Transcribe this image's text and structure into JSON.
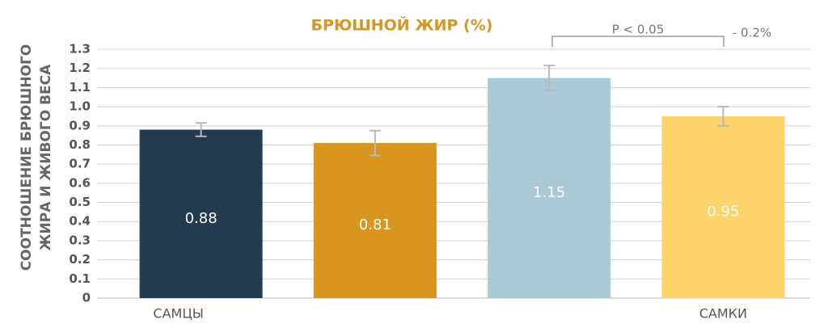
{
  "chart_data": {
    "type": "bar",
    "title": "БРЮШНОЙ ЖИР (%)",
    "ylabel": [
      "СООТНОШЕНИЕ БРЮШНОГО",
      "ЖИРА И ЖИВОГО ВЕСА"
    ],
    "categories": [
      "САМЦЫ",
      null,
      null,
      "САМКИ"
    ],
    "values": [
      0.88,
      0.81,
      1.15,
      0.95
    ],
    "errors": [
      0.035,
      0.065,
      0.065,
      0.05
    ],
    "colors": [
      "#243a4f",
      "#d9961f",
      "#aac8d6",
      "#fcd46a"
    ],
    "ylim": [
      0,
      1.3
    ],
    "yticks": [
      0,
      0.1,
      0.2,
      0.3,
      0.4,
      0.5,
      0.6,
      0.7,
      0.8,
      0.9,
      {
        "value": 1,
        "label": "1.0"
      },
      1.1,
      1.2,
      1.3
    ],
    "grid": true,
    "annotations": [
      "P < 0.05",
      "- 0.2%"
    ]
  }
}
